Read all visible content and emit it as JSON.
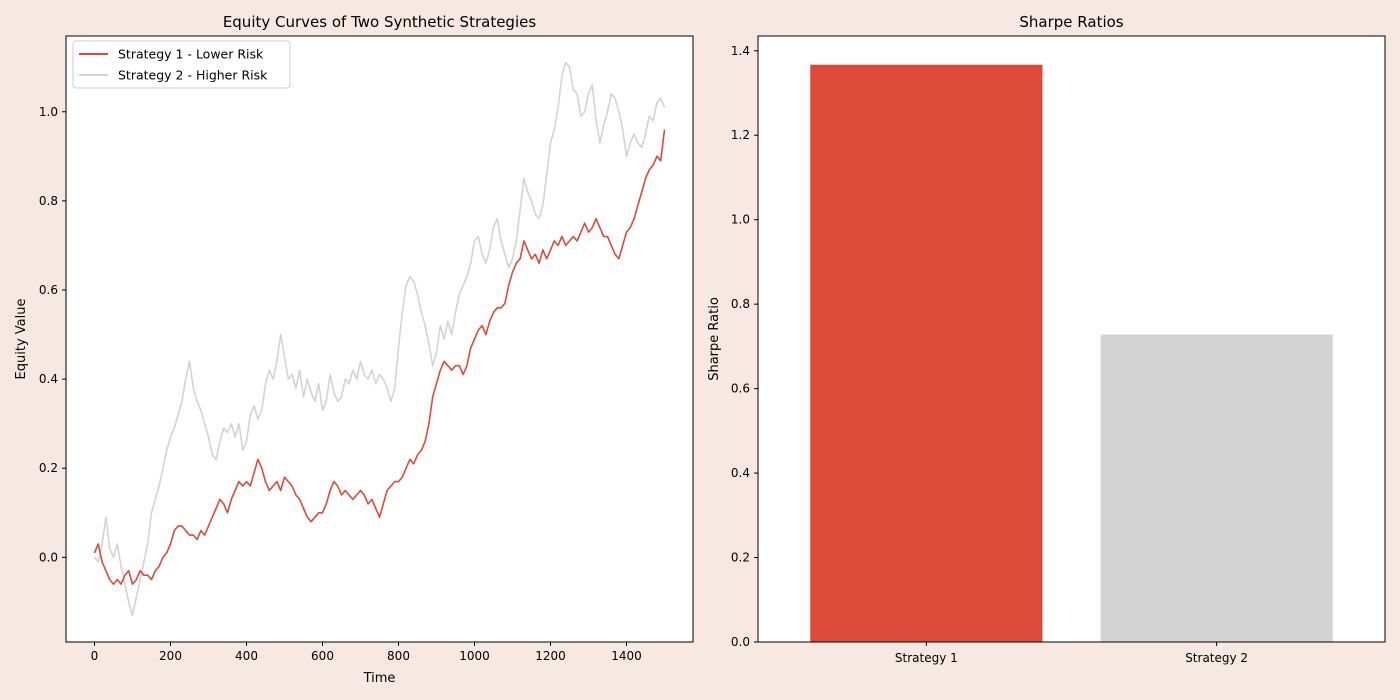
{
  "colors": {
    "figure_bg": "#f7e8e1",
    "plot_bg": "#ffffff",
    "strategy1": "#dc4b3a",
    "strategy2": "#d3d3d3"
  },
  "chart_data": [
    {
      "type": "line",
      "title": "Equity Curves of Two Synthetic Strategies",
      "xlabel": "Time",
      "ylabel": "Equity Value",
      "xlim": [
        -75,
        1575
      ],
      "ylim": [
        -0.19,
        1.17
      ],
      "xticks": [
        0,
        200,
        400,
        600,
        800,
        1000,
        1200,
        1400
      ],
      "yticks": [
        0.0,
        0.2,
        0.4,
        0.6,
        0.8,
        1.0
      ],
      "grid": false,
      "legend": "top-left",
      "series": [
        {
          "name": "Strategy 1 - Lower Risk",
          "color": "#dc4b3a",
          "x": [
            0,
            10,
            20,
            30,
            40,
            50,
            60,
            70,
            80,
            90,
            100,
            110,
            120,
            130,
            140,
            150,
            160,
            170,
            180,
            190,
            200,
            210,
            220,
            230,
            240,
            250,
            260,
            270,
            280,
            290,
            300,
            310,
            320,
            330,
            340,
            350,
            360,
            370,
            380,
            390,
            400,
            410,
            420,
            430,
            440,
            450,
            460,
            470,
            480,
            490,
            500,
            510,
            520,
            530,
            540,
            550,
            560,
            570,
            580,
            590,
            600,
            610,
            620,
            630,
            640,
            650,
            660,
            670,
            680,
            690,
            700,
            710,
            720,
            730,
            740,
            750,
            760,
            770,
            780,
            790,
            800,
            810,
            820,
            830,
            840,
            850,
            860,
            870,
            880,
            890,
            900,
            910,
            920,
            930,
            940,
            950,
            960,
            970,
            980,
            990,
            1000,
            1010,
            1020,
            1030,
            1040,
            1050,
            1060,
            1070,
            1080,
            1090,
            1100,
            1110,
            1120,
            1130,
            1140,
            1150,
            1160,
            1170,
            1180,
            1190,
            1200,
            1210,
            1220,
            1230,
            1240,
            1250,
            1260,
            1270,
            1280,
            1290,
            1300,
            1310,
            1320,
            1330,
            1340,
            1350,
            1360,
            1370,
            1380,
            1390,
            1400,
            1410,
            1420,
            1430,
            1440,
            1450,
            1460,
            1470,
            1480,
            1490,
            1500
          ],
          "values": [
            0.01,
            0.03,
            -0.01,
            -0.03,
            -0.05,
            -0.06,
            -0.05,
            -0.06,
            -0.04,
            -0.03,
            -0.06,
            -0.05,
            -0.03,
            -0.04,
            -0.04,
            -0.05,
            -0.03,
            -0.02,
            0.0,
            0.01,
            0.03,
            0.06,
            0.07,
            0.07,
            0.06,
            0.05,
            0.05,
            0.04,
            0.06,
            0.05,
            0.07,
            0.09,
            0.11,
            0.13,
            0.12,
            0.1,
            0.13,
            0.15,
            0.17,
            0.16,
            0.17,
            0.16,
            0.19,
            0.22,
            0.2,
            0.17,
            0.15,
            0.16,
            0.17,
            0.15,
            0.18,
            0.17,
            0.16,
            0.14,
            0.13,
            0.11,
            0.09,
            0.08,
            0.09,
            0.1,
            0.1,
            0.12,
            0.15,
            0.17,
            0.16,
            0.14,
            0.15,
            0.14,
            0.13,
            0.14,
            0.15,
            0.14,
            0.12,
            0.13,
            0.11,
            0.09,
            0.12,
            0.15,
            0.16,
            0.17,
            0.17,
            0.18,
            0.2,
            0.22,
            0.21,
            0.23,
            0.24,
            0.26,
            0.3,
            0.36,
            0.39,
            0.42,
            0.44,
            0.43,
            0.42,
            0.43,
            0.43,
            0.41,
            0.43,
            0.47,
            0.49,
            0.51,
            0.52,
            0.5,
            0.53,
            0.55,
            0.56,
            0.56,
            0.57,
            0.61,
            0.64,
            0.66,
            0.67,
            0.71,
            0.69,
            0.67,
            0.68,
            0.66,
            0.69,
            0.67,
            0.69,
            0.71,
            0.7,
            0.72,
            0.7,
            0.71,
            0.72,
            0.71,
            0.73,
            0.75,
            0.73,
            0.74,
            0.76,
            0.74,
            0.72,
            0.72,
            0.7,
            0.68,
            0.67,
            0.7,
            0.73,
            0.74,
            0.76,
            0.79,
            0.82,
            0.85,
            0.87,
            0.88,
            0.9,
            0.89,
            0.96
          ]
        },
        {
          "name": "Strategy 2 - Higher Risk",
          "color": "#d3d3d3",
          "x": [
            0,
            10,
            20,
            30,
            40,
            50,
            60,
            70,
            80,
            90,
            100,
            110,
            120,
            130,
            140,
            150,
            160,
            170,
            180,
            190,
            200,
            210,
            220,
            230,
            240,
            250,
            260,
            270,
            280,
            290,
            300,
            310,
            320,
            330,
            340,
            350,
            360,
            370,
            380,
            390,
            400,
            410,
            420,
            430,
            440,
            450,
            460,
            470,
            480,
            490,
            500,
            510,
            520,
            530,
            540,
            550,
            560,
            570,
            580,
            590,
            600,
            610,
            620,
            630,
            640,
            650,
            660,
            670,
            680,
            690,
            700,
            710,
            720,
            730,
            740,
            750,
            760,
            770,
            780,
            790,
            800,
            810,
            820,
            830,
            840,
            850,
            860,
            870,
            880,
            890,
            900,
            910,
            920,
            930,
            940,
            950,
            960,
            970,
            980,
            990,
            1000,
            1010,
            1020,
            1030,
            1040,
            1050,
            1060,
            1070,
            1080,
            1090,
            1100,
            1110,
            1120,
            1130,
            1140,
            1150,
            1160,
            1170,
            1180,
            1190,
            1200,
            1210,
            1220,
            1230,
            1240,
            1250,
            1260,
            1270,
            1280,
            1290,
            1300,
            1310,
            1320,
            1330,
            1340,
            1350,
            1360,
            1370,
            1380,
            1390,
            1400,
            1410,
            1420,
            1430,
            1440,
            1450,
            1460,
            1470,
            1480,
            1490,
            1500
          ],
          "values": [
            0.0,
            -0.01,
            0.03,
            0.09,
            0.02,
            0.0,
            0.03,
            -0.02,
            -0.06,
            -0.1,
            -0.13,
            -0.09,
            -0.05,
            -0.01,
            0.03,
            0.1,
            0.13,
            0.16,
            0.2,
            0.24,
            0.27,
            0.29,
            0.32,
            0.35,
            0.4,
            0.44,
            0.38,
            0.35,
            0.33,
            0.3,
            0.27,
            0.23,
            0.22,
            0.26,
            0.29,
            0.28,
            0.3,
            0.27,
            0.3,
            0.24,
            0.26,
            0.32,
            0.34,
            0.31,
            0.33,
            0.39,
            0.42,
            0.4,
            0.44,
            0.5,
            0.45,
            0.4,
            0.41,
            0.38,
            0.42,
            0.36,
            0.4,
            0.37,
            0.35,
            0.39,
            0.33,
            0.35,
            0.41,
            0.37,
            0.35,
            0.36,
            0.4,
            0.39,
            0.42,
            0.4,
            0.44,
            0.41,
            0.4,
            0.42,
            0.39,
            0.41,
            0.4,
            0.38,
            0.35,
            0.38,
            0.47,
            0.55,
            0.61,
            0.63,
            0.62,
            0.59,
            0.55,
            0.52,
            0.48,
            0.43,
            0.46,
            0.52,
            0.49,
            0.53,
            0.5,
            0.55,
            0.59,
            0.61,
            0.63,
            0.66,
            0.71,
            0.72,
            0.68,
            0.66,
            0.69,
            0.74,
            0.76,
            0.71,
            0.68,
            0.65,
            0.67,
            0.71,
            0.78,
            0.85,
            0.82,
            0.8,
            0.77,
            0.76,
            0.79,
            0.86,
            0.93,
            0.96,
            1.01,
            1.08,
            1.11,
            1.1,
            1.05,
            1.04,
            0.99,
            1.0,
            1.04,
            1.06,
            0.98,
            0.93,
            0.97,
            1.0,
            1.04,
            1.03,
            1.0,
            0.96,
            0.9,
            0.93,
            0.95,
            0.93,
            0.92,
            0.95,
            0.99,
            0.98,
            1.02,
            1.03,
            1.01
          ]
        }
      ]
    },
    {
      "type": "bar",
      "title": "Sharpe Ratios",
      "xlabel": "",
      "ylabel": "Sharpe Ratio",
      "categories": [
        "Strategy 1",
        "Strategy 2"
      ],
      "values": [
        1.367,
        0.728
      ],
      "colors": [
        "#dc4b3a",
        "#d3d3d3"
      ],
      "ylim": [
        0,
        1.435
      ],
      "yticks": [
        0.0,
        0.2,
        0.4,
        0.6,
        0.8,
        1.0,
        1.2,
        1.4
      ],
      "grid": false
    }
  ]
}
